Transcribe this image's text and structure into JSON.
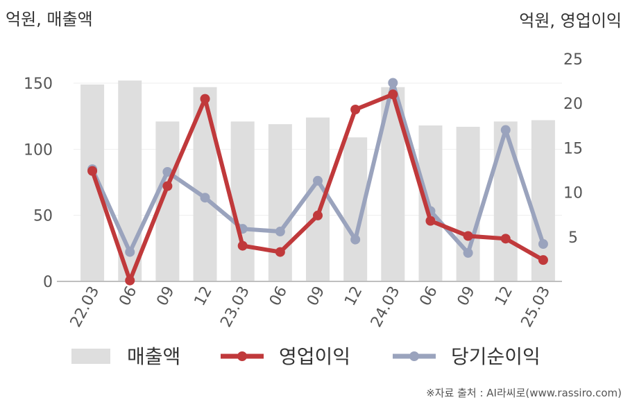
{
  "header": {
    "left_unit": "억원, 매출액",
    "right_unit": "억원, 영업이익"
  },
  "legend": {
    "revenue": "매출액",
    "operating_profit": "영업이익",
    "net_profit": "당기순이익"
  },
  "source": "※자료 출처 : AI라씨로(www.rassiro.com)",
  "colors": {
    "revenue": "#dedede",
    "operating_profit": "#c0393b",
    "net_profit": "#9aa3bd",
    "axis": "#bfbfbf",
    "grid": "#eeeeee"
  },
  "chart_data": {
    "type": "bar",
    "categories": [
      "22.03",
      "06",
      "09",
      "12",
      "23.03",
      "06",
      "09",
      "12",
      "24.03",
      "06",
      "09",
      "12",
      "25.03"
    ],
    "left_axis": {
      "label": "억원, 매출액",
      "ylim": [
        0,
        160
      ],
      "ticks": [
        0,
        50,
        100,
        150
      ]
    },
    "right_axis": {
      "label": "억원, 영업이익",
      "ylim": [
        0,
        25
      ],
      "ticks": [
        5,
        10,
        15,
        20,
        25
      ]
    },
    "series": [
      {
        "name": "매출액",
        "kind": "bar",
        "axis": "left",
        "values": [
          149,
          152,
          121,
          147,
          121,
          119,
          124,
          109,
          147,
          118,
          117,
          121,
          122
        ]
      },
      {
        "name": "영업이익",
        "kind": "line",
        "axis": "right",
        "values": [
          12.4,
          0.1,
          10.7,
          20.5,
          4.0,
          3.3,
          7.4,
          19.3,
          21.0,
          6.8,
          5.1,
          4.8,
          2.4
        ]
      },
      {
        "name": "당기순이익",
        "kind": "line",
        "axis": "right",
        "values": [
          12.6,
          3.3,
          12.3,
          9.4,
          5.9,
          5.6,
          11.3,
          4.7,
          22.3,
          7.9,
          3.2,
          17.0,
          4.2
        ]
      }
    ],
    "grid": true,
    "legend_position": "bottom"
  }
}
